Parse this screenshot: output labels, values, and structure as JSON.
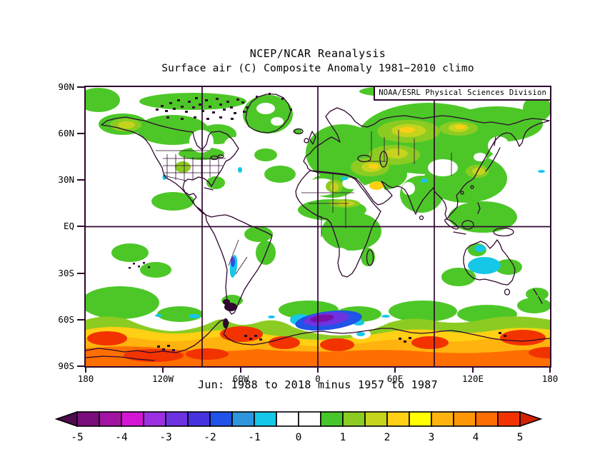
{
  "header": {
    "title": "NCEP/NCAR Reanalysis",
    "subtitle": "Surface air (C) Composite Anomaly 1981−2010 climo"
  },
  "credit": "NOAA/ESRL Physical Sciences Division",
  "caption": "Jun: 1988 to 2018 minus 1957 to 1987",
  "axes": {
    "lat_ticks": [
      "90N",
      "60N",
      "30N",
      "EQ",
      "30S",
      "60S",
      "90S"
    ],
    "lon_ticks": [
      "180",
      "120W",
      "60W",
      "0",
      "60E",
      "120E",
      "180"
    ]
  },
  "colorbar": {
    "tick_labels": [
      "-5",
      "-4",
      "-3",
      "-2",
      "-1",
      "0",
      "1",
      "2",
      "3",
      "4",
      "5"
    ],
    "segment_colors": [
      "#7c0d7c",
      "#a213a2",
      "#d416d4",
      "#9c30e0",
      "#6e33e0",
      "#4633dd",
      "#2053e8",
      "#2e96dc",
      "#16c7e8",
      "#ffffff",
      "#ffffff",
      "#46c62a",
      "#8ccc22",
      "#c6d41e",
      "#ffd013",
      "#ffff00",
      "#ffb30e",
      "#ff9704",
      "#ff6e00",
      "#f23300"
    ],
    "left_arrow_color": "#4d0a4d",
    "right_arrow_color": "#d42100"
  },
  "map": {
    "palette": {
      "ink": "#2e082e",
      "green": "#4dc728",
      "ygreen": "#8ccc22",
      "olive": "#c6d41e",
      "gold": "#ffd013",
      "yellow": "#ffff00",
      "amber": "#ffb30e",
      "orange": "#ff9704",
      "dorange": "#ff6e00",
      "red": "#f23300",
      "cyan": "#16c7e8",
      "sky": "#2e96dc",
      "blue": "#2053e8",
      "violet": "#6e33e0",
      "purple": "#9c30e0",
      "dpurple": "#7c0d7c",
      "vcore": "#7a10a8"
    },
    "grid": {
      "lon_lines": [
        "90W",
        "0",
        "90E"
      ],
      "lat_lines": [
        "EQ"
      ]
    }
  },
  "chart_data": {
    "type": "heatmap",
    "title": "NCEP/NCAR Reanalysis",
    "variable": "Surface air temperature composite anomaly (C) vs 1981−2010 climatology",
    "period": "Jun: 1988 to 2018 minus 1957 to 1987",
    "scale_levels": [
      -5,
      -4,
      -3,
      -2,
      -1,
      0,
      1,
      2,
      3,
      4,
      5
    ],
    "scale_units": "C",
    "lat_range": [
      "90S",
      "90N"
    ],
    "lon_range": [
      "180W",
      "180E"
    ],
    "notable_features": [
      "Weak warm anomaly (0.5 to 1 C) over most Northern Hemisphere land and high latitudes",
      "Warm anomalies 1 to 3 C over Alaska, western Siberia, eastern Europe and north China",
      "Strong circumpolar warm band 2 to 5 C around Antarctica south of 60S",
      "Strong cold anomaly down to -5 C over the Weddell Sea near 60S 30W",
      "Cold anomaly -1 to -2 C over central Australia",
      "Narrow cold strip along the southern Andes near 30S"
    ]
  }
}
